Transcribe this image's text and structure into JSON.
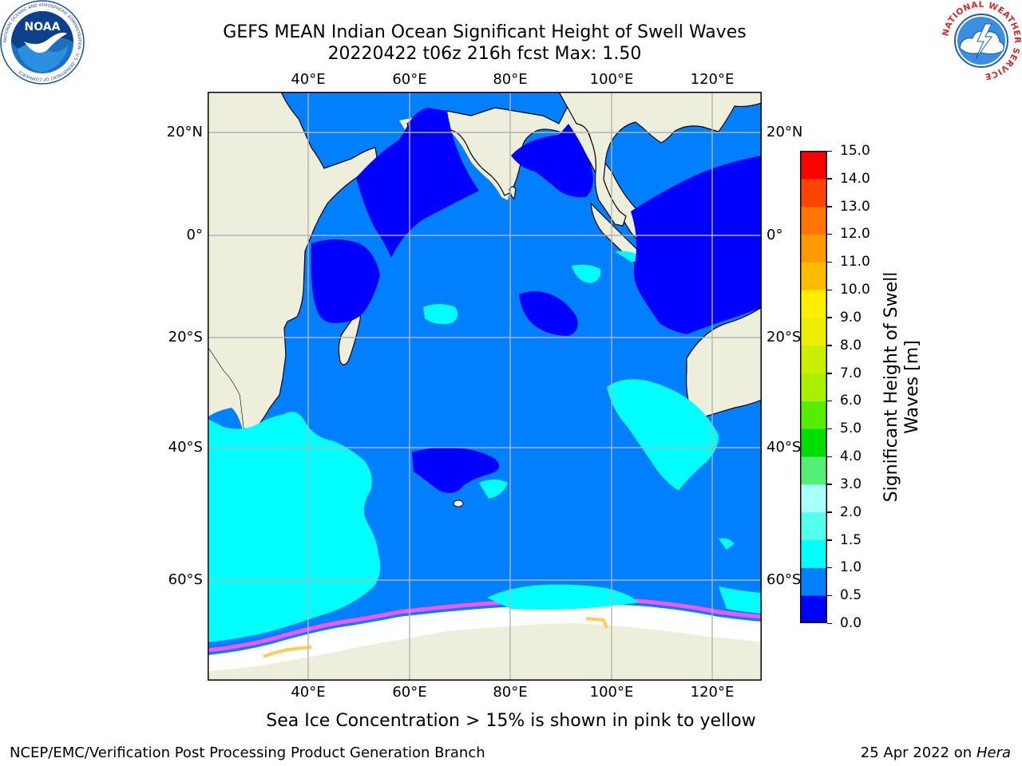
{
  "header": {
    "title_line1": "GEFS MEAN Indian Ocean Significant Height of Swell Waves",
    "title_line2": "20220422 t06z 216h fcst   Max: 1.50"
  },
  "map": {
    "lon_ticks_top": [
      "40°E",
      "60°E",
      "80°E",
      "100°E",
      "120°E"
    ],
    "lon_ticks_bottom": [
      "40°E",
      "60°E",
      "80°E",
      "100°E",
      "120°E"
    ],
    "lat_ticks_left": [
      "20°N",
      "0°",
      "20°S",
      "40°S",
      "60°S"
    ],
    "lat_ticks_right": [
      "20°N",
      "0°",
      "20°S",
      "40°S",
      "60°S"
    ],
    "colors": {
      "land": "#eeeedd",
      "ice": "#ffffff",
      "coast": "#000000",
      "grid": "#b4b4b4",
      "ice_edge_pink": "#ff55ff",
      "ice_edge_orange": "#ffcc55",
      "swell_0_0_5": "#0000ff",
      "swell_0_5_1_0": "#0080ff",
      "swell_1_0_1_5": "#00ffff"
    }
  },
  "colorbar": {
    "label_line1": "Significant Height of Swell",
    "label_line2": "Waves [m]",
    "tick_labels": [
      "15.0",
      "14.0",
      "13.0",
      "12.0",
      "11.0",
      "10.0",
      "9.0",
      "8.0",
      "7.0",
      "6.0",
      "5.0",
      "4.0",
      "3.0",
      "2.0",
      "1.5",
      "1.0",
      "0.5",
      "0.0"
    ],
    "bins": [
      {
        "range": "0.0-0.5",
        "color": "#0000ff"
      },
      {
        "range": "0.5-1.0",
        "color": "#0080ff"
      },
      {
        "range": "1.0-1.5",
        "color": "#00ffff"
      },
      {
        "range": "1.5-2.0",
        "color": "#55ffee"
      },
      {
        "range": "2.0-3.0",
        "color": "#aaffff"
      },
      {
        "range": "3.0-4.0",
        "color": "#55ee77"
      },
      {
        "range": "4.0-5.0",
        "color": "#00dd00"
      },
      {
        "range": "5.0-6.0",
        "color": "#55ee00"
      },
      {
        "range": "6.0-7.0",
        "color": "#aaee00"
      },
      {
        "range": "7.0-8.0",
        "color": "#ccee00"
      },
      {
        "range": "8.0-9.0",
        "color": "#eeee00"
      },
      {
        "range": "9.0-10.0",
        "color": "#ffee00"
      },
      {
        "range": "10.0-11.0",
        "color": "#ffbb00"
      },
      {
        "range": "11.0-12.0",
        "color": "#ff9900"
      },
      {
        "range": "12.0-13.0",
        "color": "#ff7700"
      },
      {
        "range": "13.0-14.0",
        "color": "#ff4400"
      },
      {
        "range": "14.0-15.0",
        "color": "#ff0000"
      }
    ]
  },
  "footer": {
    "subtitle": "Sea Ice Concentration > 15% is shown in pink to yellow",
    "credit": "NCEP/EMC/Verification Post Processing Product Generation Branch",
    "date_prefix": "25 Apr 2022 on ",
    "machine": "Hera"
  },
  "logos": {
    "noaa_text": "NOAA",
    "noaa_ring_text": "NATIONAL OCEANIC AND ATMOSPHERIC ADMINISTRATION · U.S. DEPARTMENT OF COMMERCE",
    "nws_ring_text": "NATIONAL WEATHER SERVICE"
  }
}
